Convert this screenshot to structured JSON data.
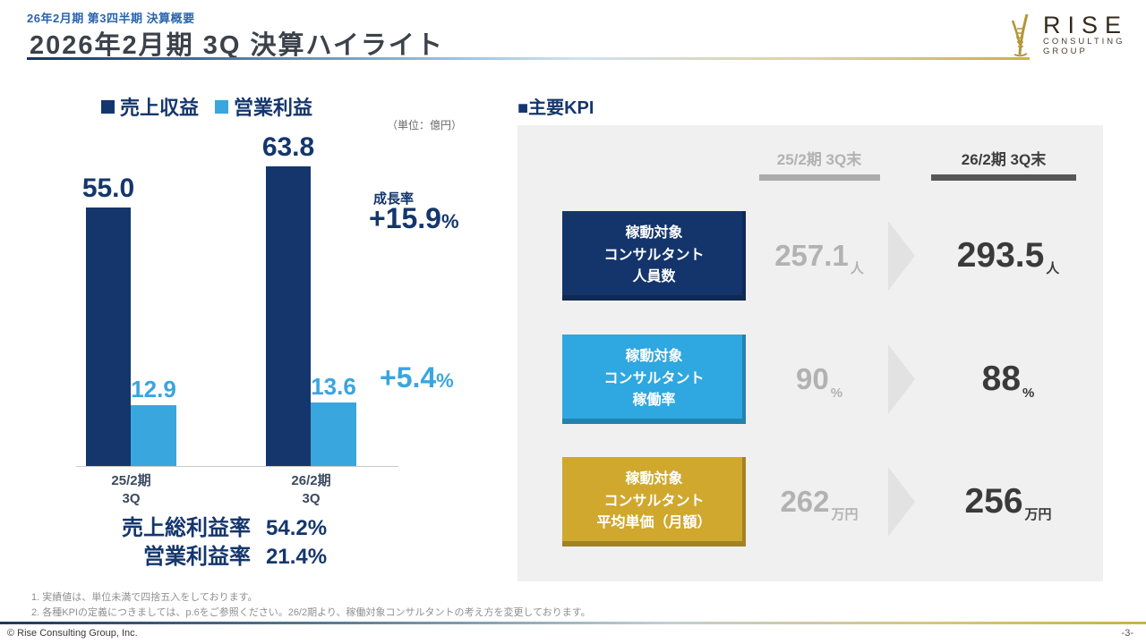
{
  "header": {
    "eyebrow": "26年2月期 第3四半期 決算概要",
    "title": "2026年2月期 3Q 決算ハイライト"
  },
  "logo": {
    "brand": "RISE",
    "sub_line1": "CONSULTING",
    "sub_line2": "GROUP"
  },
  "chart": {
    "unit_note": "（単位：億円）",
    "growth_title": "成長率",
    "growth": [
      {
        "series": "売上収益",
        "value": "+15.9",
        "unit": "%"
      },
      {
        "series": "営業利益",
        "value": "+5.4",
        "unit": "%"
      }
    ],
    "axis_labels": [
      {
        "top": "25/2期",
        "bottom": "3Q"
      },
      {
        "top": "26/2期",
        "bottom": "3Q"
      }
    ],
    "ratios": [
      {
        "label": "売上総利益率",
        "value": "54.2%"
      },
      {
        "label": "営業利益率",
        "value": "21.4%"
      }
    ]
  },
  "chart_data": {
    "type": "bar",
    "categories": [
      "25/2期 3Q",
      "26/2期 3Q"
    ],
    "series": [
      {
        "name": "売上収益",
        "color": "#14366d",
        "values": [
          55.0,
          63.8
        ],
        "labels": [
          "55.0",
          "63.8"
        ]
      },
      {
        "name": "営業利益",
        "color": "#3aa6de",
        "values": [
          12.9,
          13.6
        ],
        "labels": [
          "12.9",
          "13.6"
        ]
      }
    ],
    "unit": "億円",
    "ylim": [
      0,
      70
    ],
    "legend_position": "top",
    "growth_rates": {
      "売上収益": "+15.9%",
      "営業利益": "+5.4%"
    }
  },
  "kpi": {
    "heading": "■主要KPI",
    "columns": [
      {
        "label": "25/2期 3Q末"
      },
      {
        "label": "26/2期 3Q末"
      }
    ],
    "rows": [
      {
        "name_lines": [
          "稼動対象",
          "コンサルタント",
          "人員数"
        ],
        "color": "#14356b",
        "prev_value": "257.1",
        "curr_value": "293.5",
        "unit": "人"
      },
      {
        "name_lines": [
          "稼動対象",
          "コンサルタント",
          "稼働率"
        ],
        "color": "#2fa7e0",
        "prev_value": "90",
        "curr_value": "88",
        "unit": "%"
      },
      {
        "name_lines": [
          "稼動対象",
          "コンサルタント",
          "平均単価（月額）"
        ],
        "color": "#d0a82e",
        "prev_value": "262",
        "curr_value": "256",
        "unit": "万円"
      }
    ]
  },
  "footnotes": [
    "1. 実績値は、単位未満で四捨五入をしております。",
    "2. 各種KPIの定義につきましては、p.6をご参照ください。26/2期より、稼働対象コンサルタントの考え方を変更しております。"
  ],
  "footer": {
    "copyright": "© Rise Consulting Group, Inc.",
    "page_number": "-3-"
  },
  "colors": {
    "navy": "#14366d",
    "light_blue": "#3aa6de",
    "gold": "#d0a82e",
    "panel_bg": "#f0f0f0",
    "prev_text": "#b2b2b2",
    "curr_text": "#3a3a3a"
  }
}
